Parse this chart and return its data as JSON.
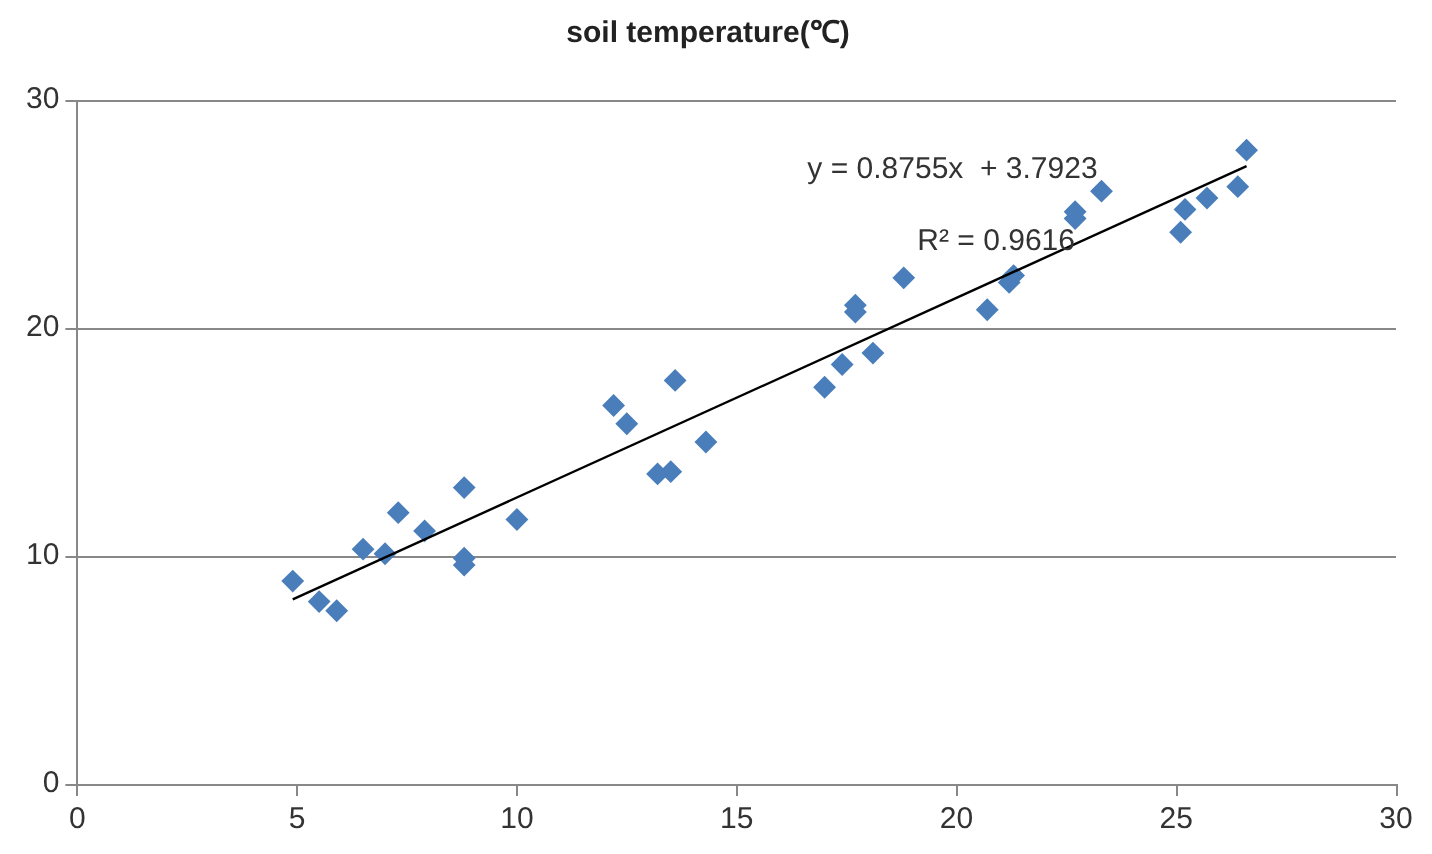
{
  "chart_data": {
    "type": "scatter",
    "title": "soil temperature(℃)",
    "series": [
      {
        "type": "scatter",
        "color": "#4a7ebb",
        "marker": "diamond",
        "x": [
          4.9,
          5.5,
          5.9,
          6.5,
          7.0,
          7.3,
          7.9,
          8.8,
          8.8,
          8.8,
          10.0,
          12.2,
          12.5,
          13.2,
          13.5,
          13.6,
          14.3,
          17.0,
          17.4,
          17.7,
          17.7,
          18.1,
          18.8,
          20.7,
          21.2,
          21.3,
          22.7,
          22.7,
          23.3,
          25.1,
          25.2,
          25.7,
          26.4,
          26.6
        ],
        "values": [
          8.9,
          8.0,
          7.6,
          10.3,
          10.1,
          11.9,
          11.1,
          13.0,
          9.9,
          9.6,
          11.6,
          16.6,
          15.8,
          13.6,
          13.7,
          17.7,
          15.0,
          17.4,
          18.4,
          20.7,
          21.0,
          18.9,
          22.2,
          20.8,
          22.0,
          22.3,
          24.8,
          25.1,
          26.0,
          24.2,
          25.2,
          25.7,
          26.2,
          27.8
        ]
      },
      {
        "type": "line",
        "color": "#000000",
        "marker": "none",
        "x": [
          4.9,
          26.6
        ],
        "values": [
          8.1,
          27.1
        ]
      }
    ],
    "xlim": [
      0,
      30
    ],
    "xticks": [
      0,
      5,
      10,
      15,
      20,
      25,
      30
    ],
    "ylim": [
      0,
      30
    ],
    "yticks": [
      0,
      10,
      20,
      30
    ],
    "grid": "y",
    "legend": false,
    "annotations": [
      "y = 0.8755x  + 3.7923",
      "R² = 0.9616"
    ]
  }
}
